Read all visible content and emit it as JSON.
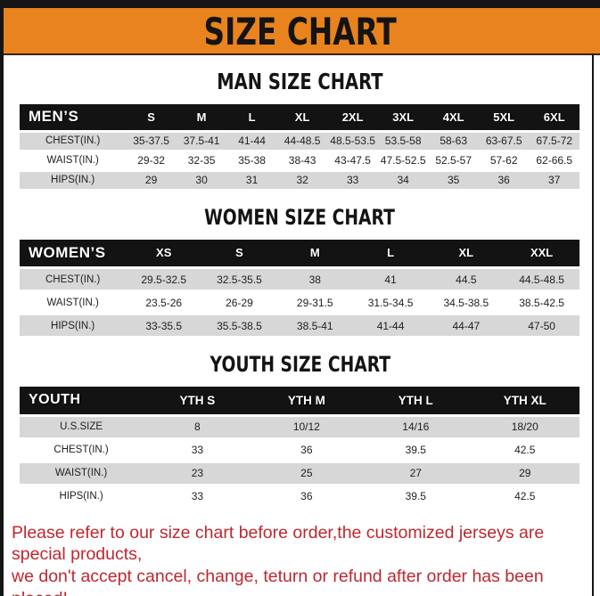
{
  "title": "SIZE CHART",
  "colors": {
    "banner_orange": "#E8831D",
    "bar_black": "#151515",
    "table_header_black": "#131313",
    "row_gray": "#D7D7D7",
    "footer_red": "#BE2730"
  },
  "sections": [
    {
      "heading": "MAN SIZE CHART",
      "table": {
        "header_label": "MEN’S",
        "sizes": [
          "S",
          "M",
          "L",
          "XL",
          "2XL",
          "3XL",
          "4XL",
          "5XL",
          "6XL"
        ],
        "rows": [
          {
            "label": "CHEST(IN.)",
            "values": [
              "35-37.5",
              "37.5-41",
              "41-44",
              "44-48.5",
              "48.5-53.5",
              "53.5-58",
              "58-63",
              "63-67.5",
              "67.5-72"
            ]
          },
          {
            "label": "WAIST(IN.)",
            "values": [
              "29-32",
              "32-35",
              "35-38",
              "38-43",
              "43-47.5",
              "47.5-52.5",
              "52.5-57",
              "57-62",
              "62-66.5"
            ]
          },
          {
            "label": "HIPS(IN.)",
            "values": [
              "29",
              "30",
              "31",
              "32",
              "33",
              "34",
              "35",
              "36",
              "37"
            ]
          }
        ]
      }
    },
    {
      "heading": "WOMEN SIZE CHART",
      "table": {
        "header_label": "WOMEN’S",
        "sizes": [
          "XS",
          "S",
          "M",
          "L",
          "XL",
          "XXL"
        ],
        "rows": [
          {
            "label": "CHEST(IN.)",
            "values": [
              "29.5-32.5",
              "32.5-35.5",
              "38",
              "41",
              "44.5",
              "44.5-48.5"
            ]
          },
          {
            "label": "WAIST(IN.)",
            "values": [
              "23.5-26",
              "26-29",
              "29-31.5",
              "31.5-34.5",
              "34.5-38.5",
              "38.5-42.5"
            ]
          },
          {
            "label": "HIPS(IN.)",
            "values": [
              "33-35.5",
              "35.5-38.5",
              "38.5-41",
              "41-44",
              "44-47",
              "47-50"
            ]
          }
        ]
      }
    },
    {
      "heading": "YOUTH SIZE CHART",
      "table": {
        "header_label": "YOUTH",
        "sizes": [
          "YTH S",
          "YTH M",
          "YTH L",
          "YTH XL"
        ],
        "rows": [
          {
            "label": "U.S.SIZE",
            "values": [
              "8",
              "10/12",
              "14/16",
              "18/20"
            ]
          },
          {
            "label": "CHEST(IN.)",
            "values": [
              "33",
              "36",
              "39.5",
              "42.5"
            ]
          },
          {
            "label": "WAIST(IN.)",
            "values": [
              "23",
              "25",
              "27",
              "29"
            ]
          },
          {
            "label": "HIPS(IN.)",
            "values": [
              "33",
              "36",
              "39.5",
              "42.5"
            ]
          }
        ]
      }
    }
  ],
  "footer": {
    "line1": "Please refer to our size chart before order,the customized jerseys are special products,",
    "line2": "we don't accept cancel, change, teturn or refund after order has been placed!"
  }
}
